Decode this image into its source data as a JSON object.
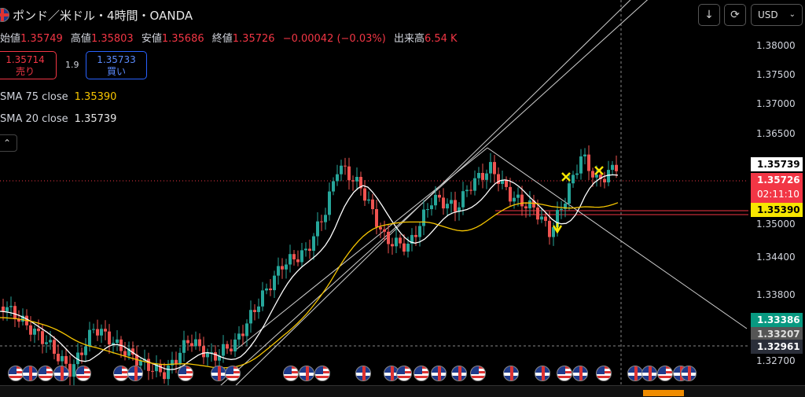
{
  "header": {
    "title": "ポンド／米ドル・4時間・OANDA",
    "ohlc": {
      "open_label": "始値",
      "open": "1.35749",
      "high_label": "高値",
      "high": "1.35803",
      "low_label": "安値",
      "low": "1.35686",
      "close_label": "終値",
      "close": "1.35726",
      "change": "−0.00042 (−0.03%)",
      "volume_label": "出来高",
      "volume": "6.54 K"
    }
  },
  "trade": {
    "sell_price": "1.35714",
    "sell_label": "売り",
    "spread": "1.9",
    "buy_price": "1.35733",
    "buy_label": "買い"
  },
  "indicators": {
    "sma75_label": "SMA 75 close",
    "sma75_value": "1.35390",
    "sma20_label": "SMA 20 close",
    "sma20_value": "1.35739"
  },
  "toolbar": {
    "currency": "USD",
    "download_icon": "download-icon",
    "refresh_icon": "refresh-icon"
  },
  "chart_data": {
    "type": "candlestick",
    "y_ticks": [
      "1.38000",
      "1.37500",
      "1.37000",
      "1.36500",
      "1.35000",
      "1.34400",
      "1.33800",
      "1.32700"
    ],
    "ylim": [
      1.3266,
      1.3825
    ],
    "price_tags": {
      "sma20": "1.35739",
      "last": "1.35726",
      "countdown": "02:11:10",
      "sma75": "1.35390",
      "green": "1.33386",
      "gray": "1.33207",
      "dark": "1.32961"
    },
    "colors": {
      "up": "#26a69a",
      "down": "#ef5350",
      "sma75": "#f7c600",
      "sma20": "#ffffff"
    },
    "event_icons": [
      "us",
      "uk",
      "us",
      "uk",
      "us",
      "us",
      "uk",
      "us",
      "uk",
      "us",
      "us",
      "uk",
      "us",
      "uk",
      "uk",
      "us",
      "us",
      "uk",
      "uk",
      "us",
      "uk",
      "uk",
      "us",
      "uk",
      "us",
      "uk",
      "uk",
      "us",
      "uk",
      "uk",
      "us",
      "uk",
      "uk",
      "uk"
    ]
  }
}
